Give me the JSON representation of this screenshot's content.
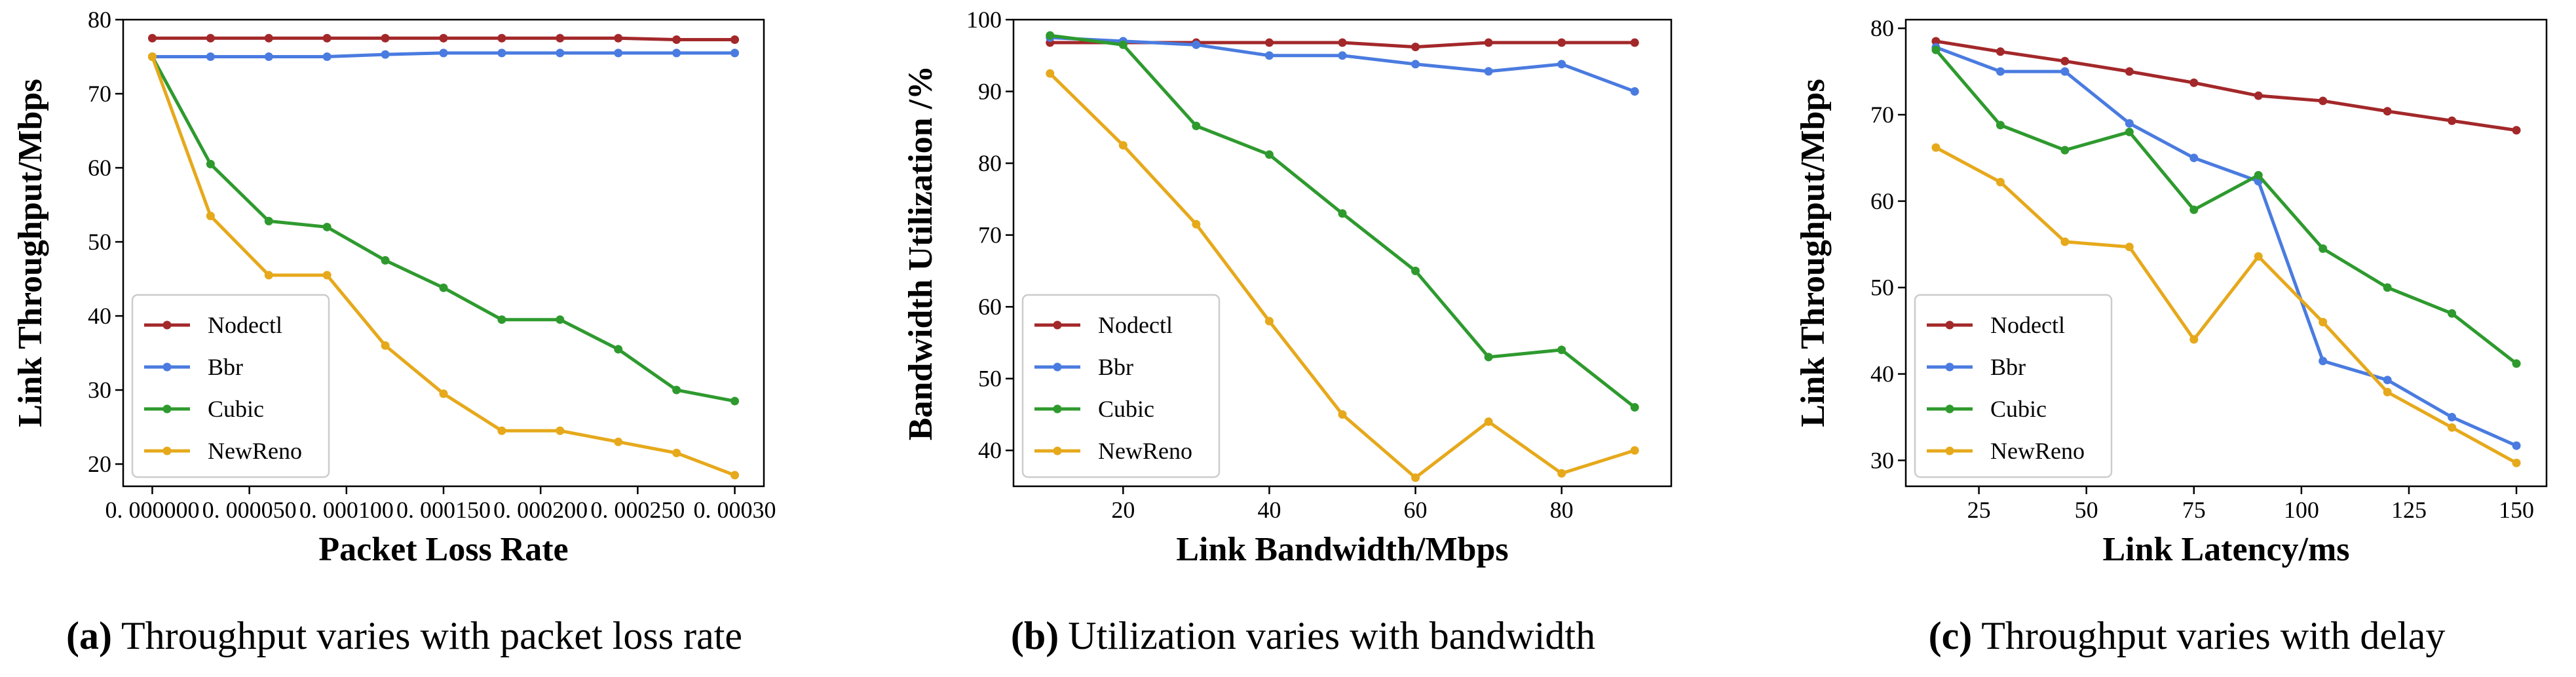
{
  "chart_data": [
    {
      "type": "line",
      "caption_label": "(a)",
      "caption": "Throughput varies with packet loss rate",
      "xlabel": "Packet Loss Rate",
      "ylabel": "Link Throughput/Mbps",
      "x": [
        0,
        3e-05,
        6e-05,
        9e-05,
        0.00012,
        0.00015,
        0.00018,
        0.00021,
        0.00024,
        0.00027,
        0.0003
      ],
      "xlim": [
        -1.5e-05,
        0.000315
      ],
      "xticks": [
        {
          "value": 0,
          "label": "0. 000000"
        },
        {
          "value": 5e-05,
          "label": "0. 000050"
        },
        {
          "value": 0.0001,
          "label": "0. 000100"
        },
        {
          "value": 0.00015,
          "label": "0. 000150"
        },
        {
          "value": 0.0002,
          "label": "0. 000200"
        },
        {
          "value": 0.00025,
          "label": "0. 000250"
        },
        {
          "value": 0.0003,
          "label": "0. 00030"
        }
      ],
      "ylim": [
        17,
        80
      ],
      "yticks": [
        20,
        30,
        40,
        50,
        60,
        70,
        80
      ],
      "legend": "lower left",
      "series": [
        {
          "name": "Nodectl",
          "color": "#a3282a",
          "values": [
            77.5,
            77.5,
            77.5,
            77.5,
            77.5,
            77.5,
            77.5,
            77.5,
            77.5,
            77.3,
            77.3
          ]
        },
        {
          "name": "Bbr",
          "color": "#4a7be0",
          "values": [
            75,
            75,
            75,
            75,
            75.3,
            75.5,
            75.5,
            75.5,
            75.5,
            75.5,
            75.5
          ]
        },
        {
          "name": "Cubic",
          "color": "#2e9a2e",
          "values": [
            75,
            60.5,
            52.8,
            52,
            47.5,
            43.8,
            39.5,
            39.5,
            35.5,
            30,
            28.5
          ]
        },
        {
          "name": "NewReno",
          "color": "#e6a91c",
          "values": [
            75,
            53.5,
            45.5,
            45.5,
            36,
            29.5,
            24.5,
            24.5,
            23,
            21.5,
            18.5
          ]
        }
      ]
    },
    {
      "type": "line",
      "caption_label": "(b)",
      "caption": "Utilization varies with bandwidth",
      "xlabel": "Link Bandwidth/Mbps",
      "ylabel": "Bandwidth Utilization /%",
      "x": [
        10,
        20,
        30,
        40,
        50,
        60,
        70,
        80,
        90
      ],
      "xlim": [
        5,
        95
      ],
      "xticks": [
        20,
        40,
        60,
        80
      ],
      "ylim": [
        35,
        100
      ],
      "yticks": [
        40,
        50,
        60,
        70,
        80,
        90,
        100
      ],
      "legend": "lower left",
      "series": [
        {
          "name": "Nodectl",
          "color": "#a3282a",
          "values": [
            96.8,
            96.8,
            96.8,
            96.8,
            96.8,
            96.2,
            96.8,
            96.8,
            96.8
          ]
        },
        {
          "name": "Bbr",
          "color": "#4a7be0",
          "values": [
            97.5,
            97,
            96.5,
            95,
            95,
            93.8,
            92.8,
            93.8,
            90
          ]
        },
        {
          "name": "Cubic",
          "color": "#2e9a2e",
          "values": [
            97.8,
            96.5,
            85.2,
            81.2,
            73,
            65,
            53,
            54,
            46
          ]
        },
        {
          "name": "NewReno",
          "color": "#e6a91c",
          "values": [
            92.5,
            82.5,
            71.5,
            58,
            45,
            36.2,
            44,
            36.8,
            40
          ]
        }
      ]
    },
    {
      "type": "line",
      "caption_label": "(c)",
      "caption": "Throughput varies with delay",
      "xlabel": "Link Latency/ms",
      "ylabel": "Link Throughput/Mbps",
      "x": [
        15,
        30,
        45,
        60,
        75,
        90,
        105,
        120,
        135,
        150
      ],
      "xlim": [
        8,
        157
      ],
      "xticks": [
        25,
        50,
        75,
        100,
        125,
        150
      ],
      "ylim": [
        27,
        81
      ],
      "yticks": [
        30,
        40,
        50,
        60,
        70,
        80
      ],
      "legend": "lower left",
      "series": [
        {
          "name": "Nodectl",
          "color": "#a3282a",
          "values": [
            78.5,
            77.3,
            76.2,
            75,
            73.7,
            72.2,
            71.6,
            70.4,
            69.3,
            68.2
          ]
        },
        {
          "name": "Bbr",
          "color": "#4a7be0",
          "values": [
            77.8,
            75,
            75,
            69,
            65,
            62.3,
            41.5,
            39.3,
            35,
            31.7
          ]
        },
        {
          "name": "Cubic",
          "color": "#2e9a2e",
          "values": [
            77.5,
            68.8,
            65.9,
            68,
            59,
            63,
            54.5,
            50,
            47,
            41.2
          ]
        },
        {
          "name": "NewReno",
          "color": "#e6a91c",
          "values": [
            66.2,
            62.2,
            55.3,
            54.7,
            44,
            53.6,
            46,
            37.9,
            33.8,
            29.7
          ]
        }
      ]
    }
  ]
}
